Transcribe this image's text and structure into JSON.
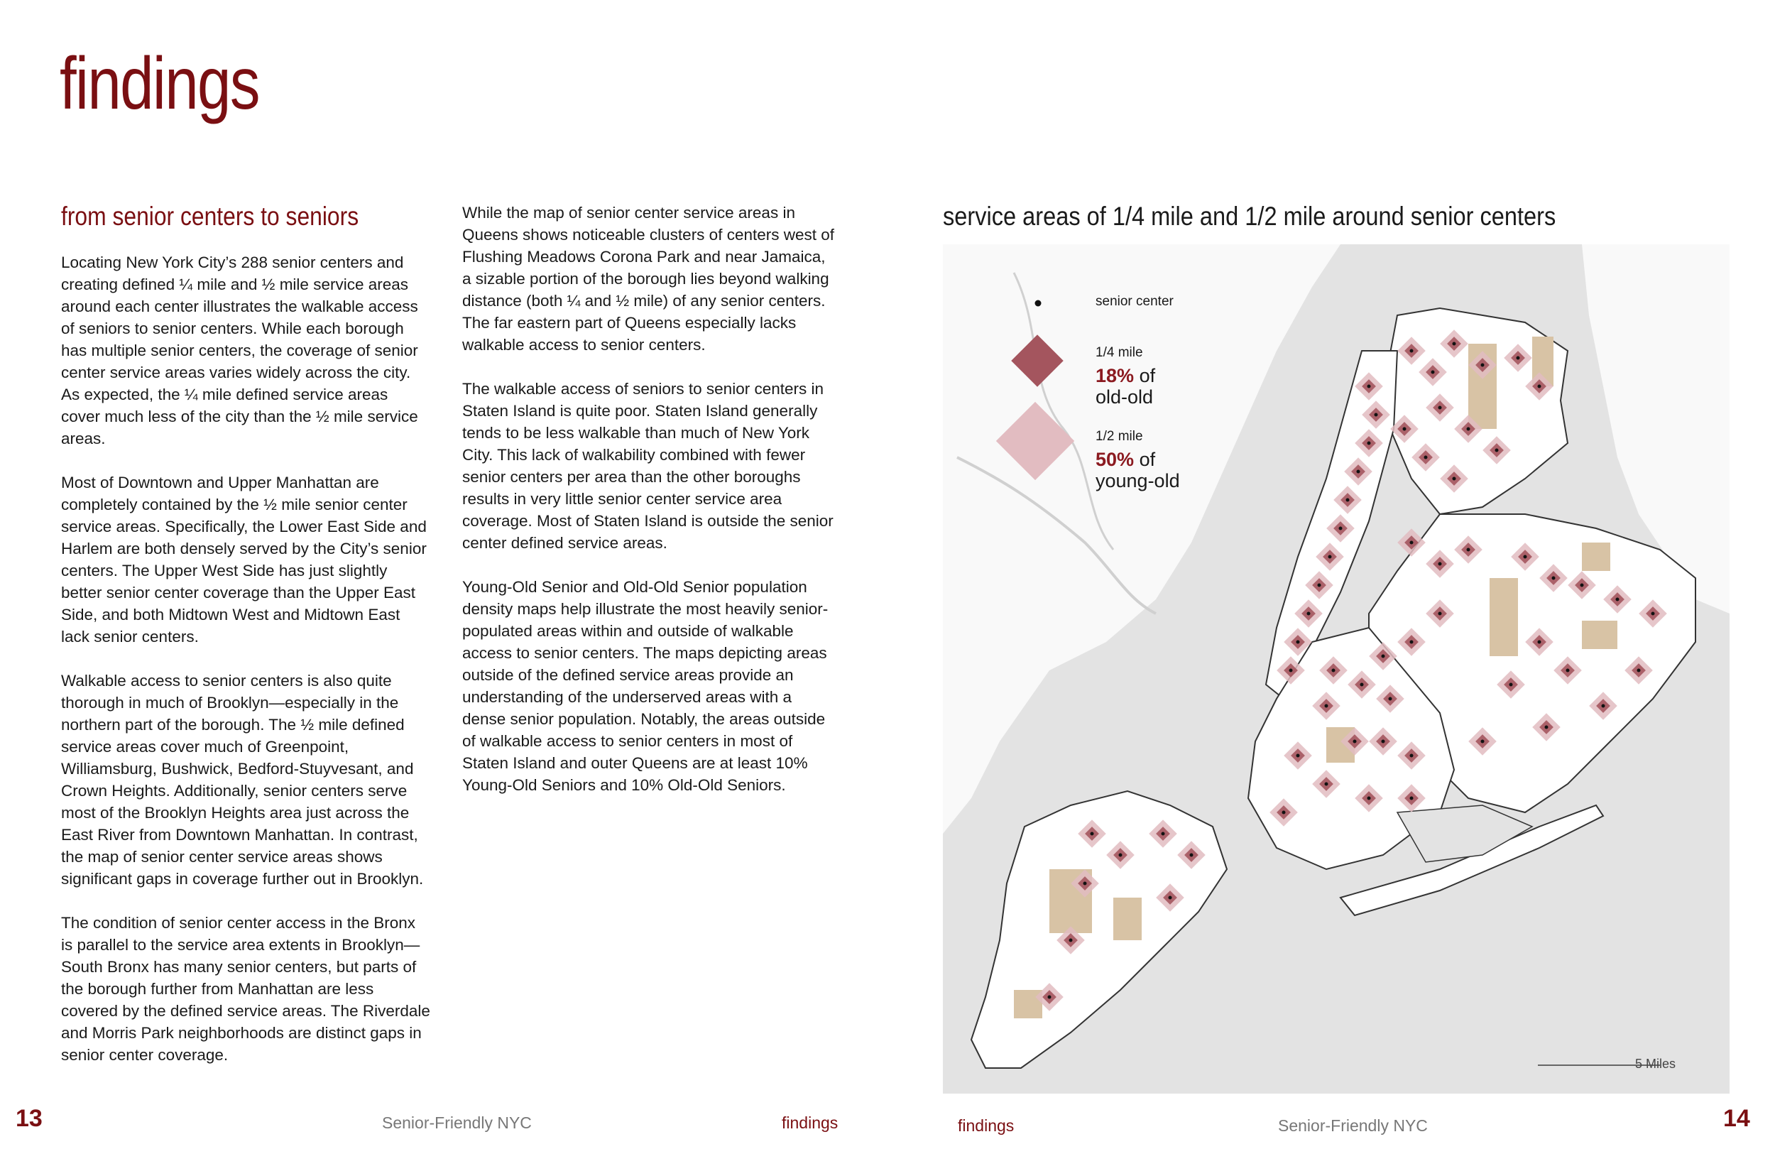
{
  "page": {
    "title": "findings"
  },
  "left_page": {
    "section_heading": "from senior centers to seniors",
    "column1": [
      "Locating New York City’s 288 senior centers and creating defined ¼ mile and ½ mile service areas around each center illustrates the walkable access of seniors to senior centers. While each borough has multiple senior centers, the coverage of senior center service areas varies widely across the city. As expected, the ¼ mile defined service areas cover much less of the city than the ½ mile service areas.",
      "Most of Downtown and Upper Manhattan are completely contained by the ½ mile senior center service areas. Specifically, the Lower East Side and Harlem are both densely served by the City’s senior centers. The Upper West Side has just slightly better senior center coverage than the Upper East Side, and both Midtown West and Midtown East lack senior centers.",
      "Walkable access to senior centers is also quite thorough in much of Brooklyn—especially in the northern part of the borough. The ½ mile defined service areas cover much of Greenpoint, Williamsburg, Bushwick, Bedford-Stuyvesant, and Crown Heights. Additionally, senior centers serve most of the Brooklyn Heights area just across the East River from Downtown Manhattan. In contrast, the map of senior center service areas shows significant gaps in coverage further out in Brooklyn.",
      "The condition of senior center access in the Bronx is parallel to the service area extents in Brooklyn—South Bronx has many senior centers, but parts of the borough further from Manhattan are less covered by the defined service areas. The Riverdale and Morris Park neighborhoods are distinct gaps in senior center coverage."
    ],
    "column2": [
      "While the map of senior center service areas in Queens shows noticeable clusters of centers west of Flushing Meadows Corona Park and near Jamaica, a sizable portion of the borough lies beyond walking distance (both ¼ and ½ mile) of any senior centers. The far eastern part of Queens especially lacks walkable access to senior centers.",
      "The walkable access of seniors to senior centers in Staten Island is quite poor. Staten Island generally tends to be less walkable than much of New York City. This lack of walkability combined with fewer senior centers per area than the other boroughs results in very little senior center service area coverage. Most of Staten Island is outside the senior center defined service areas.",
      "Young-Old Senior and Old-Old Senior population density maps help illustrate the most heavily senior-populated areas within and outside of walkable access to senior centers. The maps depicting areas outside of the defined service areas provide an understanding of the underserved areas with a dense senior population. Notably, the areas outside of walkable access to senior centers in most of Staten Island and outer Queens are at least 10% Young-Old Seniors and 10% Old-Old Seniors."
    ],
    "footer": {
      "page_number": "13",
      "publication": "Senior-Friendly NYC",
      "section": "findings"
    }
  },
  "right_page": {
    "map_title": "service areas of 1/4 mile and 1/2 mile around senior centers",
    "legend": {
      "center_label": "senior center",
      "quarter_label": "1/4 mile",
      "quarter_pct": "18%",
      "quarter_of": "of",
      "quarter_group": "old-old",
      "half_label": "1/2 mile",
      "half_pct": "50%",
      "half_of": "of",
      "half_group": "young-old"
    },
    "scale_label": "5 Miles",
    "colors": {
      "accent": "#7a0f12",
      "quarter_fill": "#a4555e",
      "half_fill": "#e2bcc1",
      "park": "#d8c3a5",
      "water": "#e3e3e3"
    },
    "footer": {
      "section": "findings",
      "publication": "Senior-Friendly NYC",
      "page_number": "14"
    }
  }
}
